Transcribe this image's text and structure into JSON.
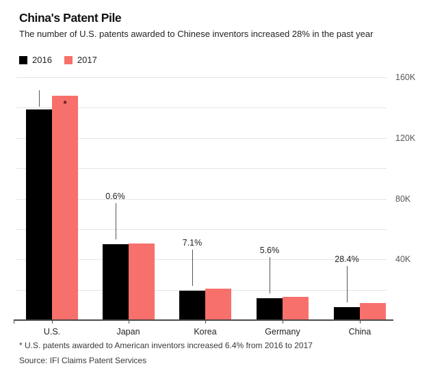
{
  "header": {
    "title": "China's Patent Pile",
    "subtitle": "The number of U.S. patents awarded to Chinese inventors increased 28% in the past year"
  },
  "legend": [
    {
      "label": "2016",
      "color": "#000000"
    },
    {
      "label": "2017",
      "color": "#F7706B"
    }
  ],
  "chart_data": {
    "type": "bar",
    "title": "China's Patent Pile",
    "subtitle": "The number of U.S. patents awarded to Chinese inventors increased 28% in the past year",
    "categories": [
      "U.S.",
      "Japan",
      "Korea",
      "Germany",
      "China"
    ],
    "series": [
      {
        "name": "2016",
        "color": "#000000",
        "values": [
          139000,
          50000,
          19500,
          14500,
          8800
        ]
      },
      {
        "name": "2017",
        "color": "#F7706B",
        "values": [
          148000,
          50300,
          20900,
          15300,
          11300
        ]
      }
    ],
    "annotations": [
      {
        "category": "U.S.",
        "type": "asterisk",
        "label": "*"
      },
      {
        "category": "Japan",
        "type": "percent",
        "label": "0.6%"
      },
      {
        "category": "Korea",
        "type": "percent",
        "label": "7.1%"
      },
      {
        "category": "Germany",
        "type": "percent",
        "label": "5.6%"
      },
      {
        "category": "China",
        "type": "percent",
        "label": "28.4%"
      }
    ],
    "y_axis": {
      "side": "right",
      "unit": "US patents",
      "ylim": [
        0,
        160000
      ],
      "grid_interval": 20000,
      "grid": true,
      "ticks": [
        {
          "value": 40000,
          "label": "40K"
        },
        {
          "value": 80000,
          "label": "80K"
        },
        {
          "value": 120000,
          "label": "120K"
        },
        {
          "value": 160000,
          "label": "160K"
        }
      ]
    },
    "legend_position": "top-left"
  },
  "footnote": "* U.S. patents awarded to American inventors increased 6.4% from 2016 to 2017",
  "source": "Source: IFI Claims Patent Services"
}
